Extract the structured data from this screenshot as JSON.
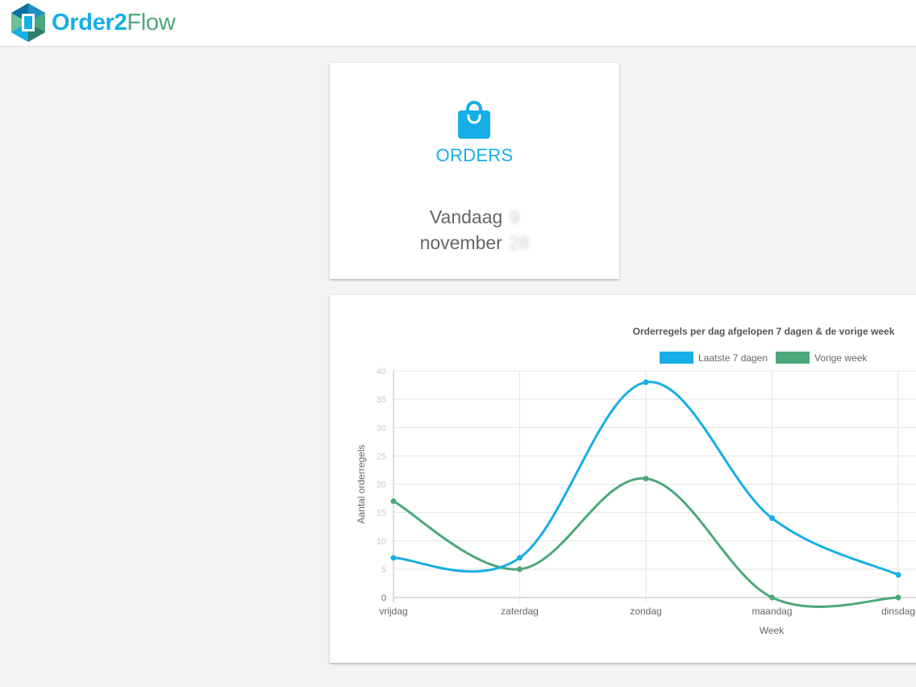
{
  "header": {
    "logo_text_primary": "Order2",
    "logo_text_secondary": "Flow"
  },
  "orders_widget": {
    "icon": "shopping-bag-icon",
    "title": "ORDERS",
    "today_label": "Vandaag",
    "today_value": "9",
    "month_label": "november",
    "month_value": "28"
  },
  "colors": {
    "accent": "#16aee6",
    "secondary": "#4ca87a"
  },
  "chart_data": {
    "type": "line",
    "title": "Orderregels per dag afgelopen 7 dagen & de vorige week",
    "xlabel": "Week",
    "ylabel": "Aantal orderregels",
    "categories": [
      "vrijdag",
      "zaterdag",
      "zondag",
      "maandag",
      "dinsdag"
    ],
    "yticks": [
      0,
      5,
      10,
      15,
      20,
      25,
      30,
      35,
      40
    ],
    "ylim": [
      0,
      40
    ],
    "grid": true,
    "legend_position": "top",
    "series": [
      {
        "name": "Laatste 7 dagen",
        "color": "#16aee6",
        "values": [
          7,
          7,
          38,
          14,
          4
        ]
      },
      {
        "name": "Vorige week",
        "color": "#4ca87a",
        "values": [
          17,
          5,
          21,
          0,
          0
        ]
      }
    ]
  }
}
